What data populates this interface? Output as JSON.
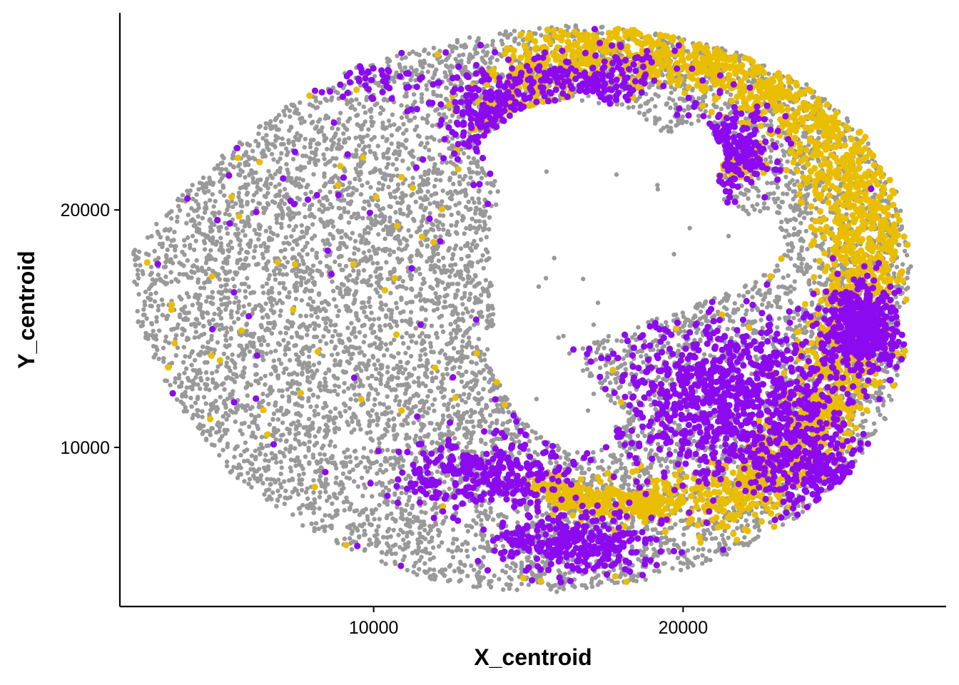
{
  "chart_data": {
    "type": "scatter",
    "title": "",
    "xlabel": "X_centroid",
    "ylabel": "Y_centroid",
    "xlim": [
      1800,
      28500
    ],
    "ylim": [
      3300,
      28300
    ],
    "x_ticks": [
      10000,
      20000
    ],
    "x_tick_labels": [
      "10000",
      "20000"
    ],
    "y_ticks": [
      10000,
      20000
    ],
    "y_tick_labels": [
      "10000",
      "20000"
    ],
    "grid": false,
    "legend": "none",
    "colors": {
      "background_cells": "#999999",
      "highlight_yellow": "#EABE00",
      "highlight_purple": "#8C0AEF",
      "axis": "#000000"
    },
    "series": [
      {
        "color": "#999999",
        "point_size": 3.2,
        "shape": {
          "center": [
            15200,
            16000
          ],
          "outer_hull": [
            [
              2200,
              18200
            ],
            [
              3600,
              20400
            ],
            [
              5200,
              22400
            ],
            [
              7100,
              24300
            ],
            [
              9200,
              25900
            ],
            [
              11800,
              27000
            ],
            [
              14600,
              27600
            ],
            [
              16800,
              27800
            ],
            [
              19200,
              27500
            ],
            [
              21600,
              26700
            ],
            [
              24000,
              25300
            ],
            [
              25800,
              23300
            ],
            [
              26900,
              20800
            ],
            [
              27400,
              17600
            ],
            [
              27200,
              14200
            ],
            [
              26600,
              11300
            ],
            [
              25400,
              8900
            ],
            [
              23700,
              7000
            ],
            [
              21400,
              5400
            ],
            [
              18800,
              4400
            ],
            [
              15800,
              3900
            ],
            [
              12800,
              4100
            ],
            [
              10200,
              5100
            ],
            [
              7800,
              6600
            ],
            [
              5400,
              8900
            ],
            [
              3400,
              12300
            ],
            [
              2300,
              15400
            ]
          ],
          "inner_holes": [
            [
              [
                13300,
                22700
              ],
              [
                14600,
                24200
              ],
              [
                16300,
                24700
              ],
              [
                18200,
                24300
              ],
              [
                19400,
                23100
              ],
              [
                20600,
                23800
              ],
              [
                21400,
                22400
              ],
              [
                21000,
                20800
              ],
              [
                21800,
                19900
              ],
              [
                23000,
                19600
              ],
              [
                23400,
                18400
              ],
              [
                22400,
                17000
              ],
              [
                20600,
                16100
              ],
              [
                18400,
                15100
              ],
              [
                16200,
                14000
              ],
              [
                17200,
                12600
              ],
              [
                18200,
                11200
              ],
              [
                17200,
                9800
              ],
              [
                15800,
                10100
              ],
              [
                14600,
                11300
              ],
              [
                13800,
                13400
              ],
              [
                13900,
                16000
              ],
              [
                13700,
                18600
              ],
              [
                14100,
                21000
              ]
            ],
            [
              [
                8600,
                10400
              ],
              [
                9700,
                10700
              ],
              [
                10000,
                10000
              ],
              [
                8900,
                9900
              ]
            ],
            [
              [
                6000,
                17600
              ],
              [
                6600,
                17400
              ],
              [
                6300,
                16500
              ],
              [
                5900,
                16900
              ]
            ]
          ],
          "count": 9000
        }
      },
      {
        "color": "#EABE00",
        "point_size": 4.6,
        "bands": [
          {
            "path": [
              [
                14000,
                23600
              ],
              [
                15200,
                25800
              ],
              [
                17400,
                26800
              ],
              [
                20000,
                26500
              ],
              [
                22600,
                25200
              ],
              [
                24600,
                23200
              ],
              [
                25600,
                20600
              ],
              [
                25900,
                17600
              ],
              [
                25200,
                14600
              ],
              [
                24600,
                11800
              ],
              [
                23200,
                9400
              ],
              [
                21600,
                8000
              ],
              [
                19600,
                7600
              ]
            ],
            "width": 1300,
            "count": 2200
          },
          {
            "path": [
              [
                15200,
                8400
              ],
              [
                17200,
                7600
              ],
              [
                19400,
                7800
              ]
            ],
            "width": 700,
            "count": 300
          },
          {
            "path": [
              [
                19800,
                21200
              ],
              [
                21200,
                21800
              ],
              [
                22400,
                22000
              ]
            ],
            "width": 500,
            "count": 150
          }
        ],
        "scatter_count": 160
      },
      {
        "color": "#8C0AEF",
        "point_size": 4.6,
        "clusters": [
          {
            "center": [
              21500,
              12000
            ],
            "spread": [
              3200,
              2800
            ],
            "count": 900
          },
          {
            "center": [
              25800,
              15000
            ],
            "spread": [
              1000,
              1500
            ],
            "count": 420
          },
          {
            "center": [
              14000,
              24000
            ],
            "spread": [
              1500,
              1500
            ],
            "count": 280
          },
          {
            "center": [
              21400,
              22500
            ],
            "spread": [
              1400,
              1400
            ],
            "count": 260
          },
          {
            "center": [
              13800,
              9000
            ],
            "spread": [
              2400,
              1300
            ],
            "count": 300
          },
          {
            "center": [
              16500,
              6000
            ],
            "spread": [
              2500,
              1200
            ],
            "count": 300
          },
          {
            "center": [
              24500,
              9000
            ],
            "spread": [
              2000,
              1500
            ],
            "count": 250
          },
          {
            "center": [
              17000,
              25500
            ],
            "spread": [
              2500,
              1000
            ],
            "count": 180
          },
          {
            "center": [
              9600,
              25600
            ],
            "spread": [
              2000,
              800
            ],
            "count": 60
          }
        ],
        "scatter_count": 140
      }
    ]
  }
}
